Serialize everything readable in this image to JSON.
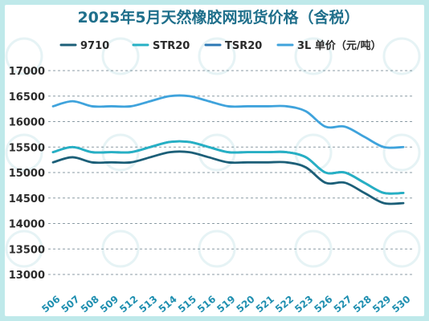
{
  "chart_data": {
    "type": "line",
    "title": "2025年5月天然橡胶网现货价格（含税）",
    "categories": [
      "506",
      "507",
      "508",
      "509",
      "512",
      "513",
      "514",
      "515",
      "516",
      "519",
      "520",
      "521",
      "522",
      "523",
      "526",
      "527",
      "528",
      "529",
      "530"
    ],
    "ylim": [
      13000,
      17000
    ],
    "yticks": [
      13000,
      13500,
      14000,
      14500,
      15000,
      15500,
      16000,
      16500,
      17000
    ],
    "grid": true,
    "legend_position": "top",
    "series": [
      {
        "name": "9710",
        "color": "#1c5f78",
        "values": [
          15200,
          15300,
          15200,
          15200,
          15200,
          15300,
          15400,
          15400,
          15300,
          15200,
          15200,
          15200,
          15200,
          15100,
          14800,
          14800,
          14600,
          14400,
          14400
        ]
      },
      {
        "name": "STR20",
        "color": "#26b0c4",
        "values": [
          15400,
          15500,
          15400,
          15400,
          15400,
          15500,
          15600,
          15600,
          15500,
          15400,
          15400,
          15400,
          15400,
          15300,
          15000,
          15000,
          14800,
          14600,
          14600
        ]
      },
      {
        "name": "TSR20",
        "color": "#2c78b4",
        "values": [
          15400,
          15500,
          15400,
          15400,
          15400,
          15500,
          15600,
          15600,
          15500,
          15400,
          15400,
          15400,
          15400,
          15300,
          15000,
          15000,
          14800,
          14600,
          14600
        ]
      },
      {
        "name": "3L 单价（元/吨）",
        "color": "#3fa3dc",
        "values": [
          16300,
          16400,
          16300,
          16300,
          16300,
          16400,
          16500,
          16500,
          16400,
          16300,
          16300,
          16300,
          16300,
          16200,
          15900,
          15900,
          15700,
          15500,
          15500
        ]
      }
    ]
  }
}
